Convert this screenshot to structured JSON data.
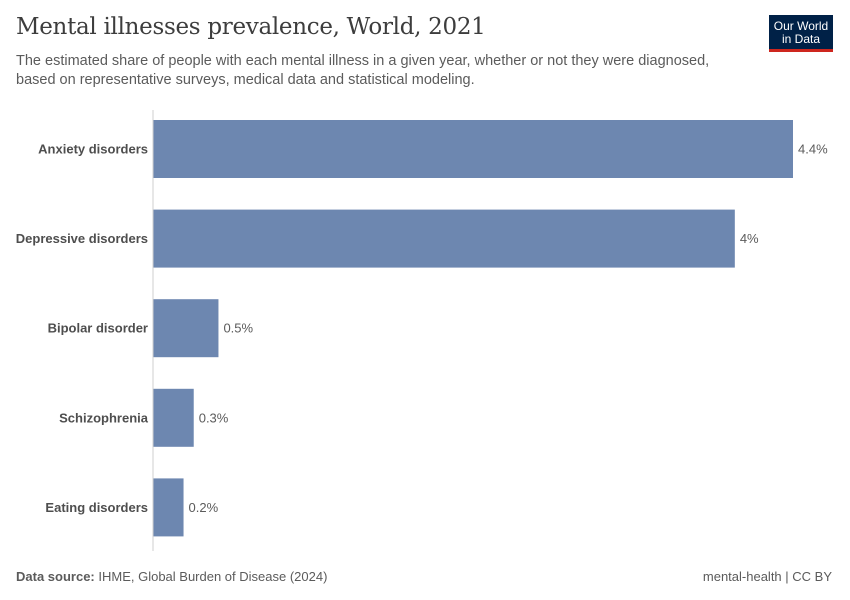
{
  "chart_data": {
    "type": "bar",
    "orientation": "horizontal",
    "title": "Mental illnesses prevalence, World, 2021",
    "subtitle": "The estimated share of people with each mental illness in a given year, whether or not they were diagnosed, based on representative surveys, medical data and statistical modeling.",
    "categories": [
      "Anxiety disorders",
      "Depressive disorders",
      "Bipolar disorder",
      "Schizophrenia",
      "Eating disorders"
    ],
    "values": [
      4.4,
      4.0,
      0.45,
      0.28,
      0.21
    ],
    "data_labels": [
      "4.4%",
      "4%",
      "0.5%",
      "0.3%",
      "0.2%"
    ],
    "unit": "%",
    "xlim": [
      0,
      4.4
    ],
    "grid": false,
    "bar_color": "#6d87b0"
  },
  "logo": {
    "line1": "Our World",
    "line2": "in Data",
    "bg_color": "#002147",
    "accent_color": "#ce261e"
  },
  "footer": {
    "source_label": "Data source:",
    "source_text": " IHME, Global Burden of Disease (2024)",
    "right_text": "mental-health | CC BY"
  }
}
